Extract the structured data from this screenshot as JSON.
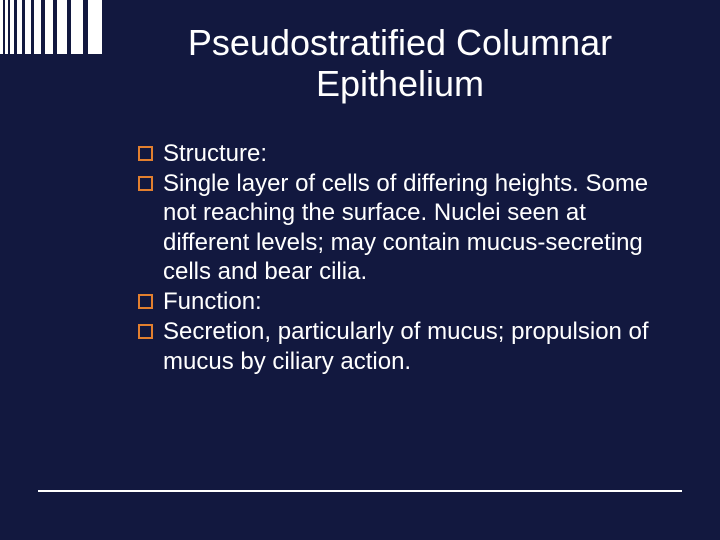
{
  "decor": {
    "bars": {
      "count": 10,
      "heightPx": 54,
      "color": "#ffffff",
      "widths": [
        3,
        3,
        4,
        5,
        6,
        7,
        8,
        10,
        12,
        14
      ],
      "gaps": [
        2,
        2,
        3,
        3,
        3,
        4,
        4,
        4,
        5,
        0
      ]
    },
    "background_color": "#12183f",
    "footer_line_color": "#ffffff"
  },
  "title": {
    "text": "Pseudostratified Columnar Epithelium",
    "fontsize": 36,
    "color": "#ffffff"
  },
  "bullets": {
    "box_border_color": "#e27f2f",
    "fontsize": 24,
    "text_color": "#ffffff",
    "items": [
      "Structure:",
      "Single layer of cells of differing heights. Some not reaching the surface.  Nuclei seen at different levels; may contain mucus-secreting cells and bear cilia.",
      "Function:",
      "Secretion, particularly of mucus; propulsion of mucus by ciliary action."
    ]
  }
}
